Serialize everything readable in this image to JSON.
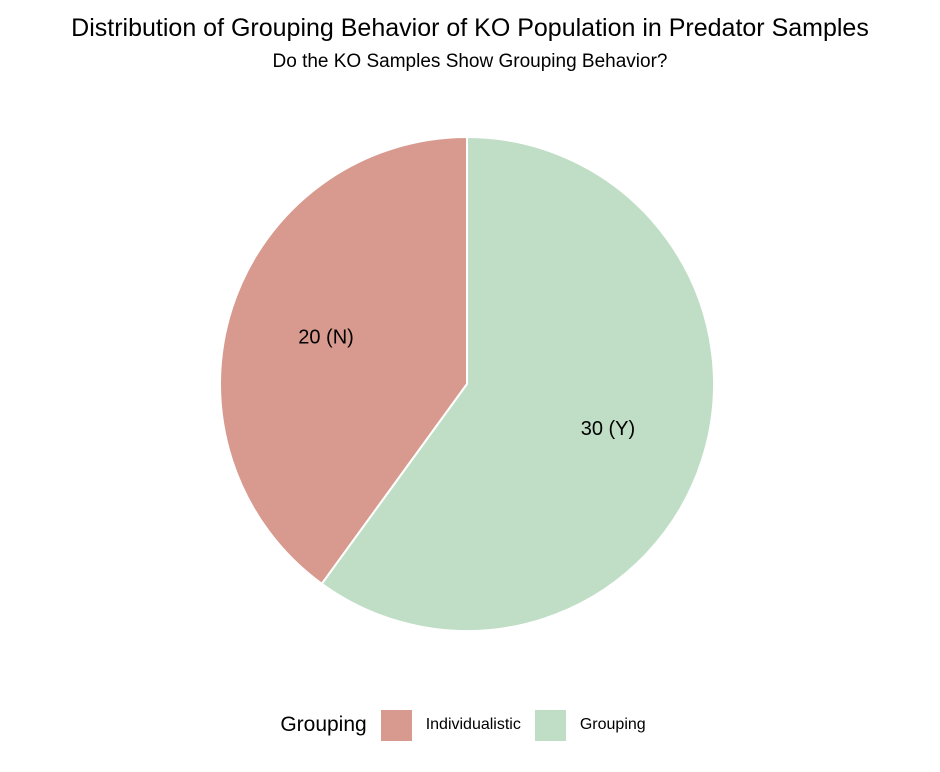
{
  "chart_data": {
    "type": "pie",
    "title": "Distribution of Grouping Behavior of KO Population in Predator Samples",
    "subtitle": "Do the KO Samples Show Grouping Behavior?",
    "legend_title": "Grouping",
    "legend_placement": "bottom",
    "slices": [
      {
        "category": "Individualistic",
        "value": 20,
        "label": "20 (N)",
        "color": "#d89a8f"
      },
      {
        "category": "Grouping",
        "value": 30,
        "label": "30 (Y)",
        "color": "#bfdec5"
      }
    ]
  }
}
